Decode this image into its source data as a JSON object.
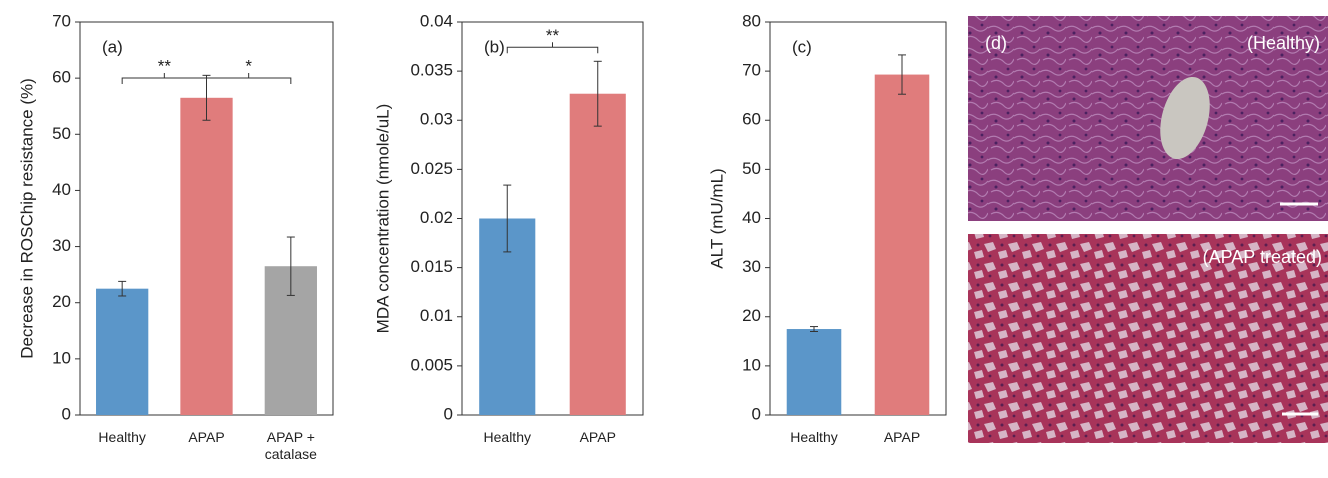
{
  "chart_data": [
    {
      "type": "bar",
      "panel_label": "(a)",
      "y_label": "Decrease in ROSChip resistance (%)",
      "categories": [
        "Healthy",
        "APAP",
        "APAP + catalase"
      ],
      "values": [
        22.5,
        56.5,
        26.5
      ],
      "errors": [
        1.3,
        4,
        5.2
      ],
      "colors": [
        "#5b96c9",
        "#e07c7c",
        "#a5a5a5"
      ],
      "annotations": [
        "**",
        "*"
      ],
      "ylim": [
        0,
        70
      ],
      "yticks": [
        0,
        10,
        20,
        30,
        40,
        50,
        60,
        70
      ]
    },
    {
      "type": "bar",
      "panel_label": "(b)",
      "y_label": "MDA concentration (nmole/uL)",
      "categories": [
        "Healthy",
        "APAP"
      ],
      "values": [
        0.02,
        0.0327
      ],
      "errors": [
        0.0034,
        0.0033
      ],
      "colors": [
        "#5b96c9",
        "#e07c7c"
      ],
      "annotations": [
        "**"
      ],
      "ylim": [
        0,
        0.04
      ],
      "yticks": [
        0,
        0.005,
        0.01,
        0.015,
        0.02,
        0.025,
        0.03,
        0.035,
        0.04
      ]
    },
    {
      "type": "bar",
      "panel_label": "(c)",
      "y_label": "ALT (mU/mL)",
      "categories": [
        "Healthy",
        "APAP"
      ],
      "values": [
        17.5,
        69.3
      ],
      "errors": [
        0.5,
        4
      ],
      "colors": [
        "#5b96c9",
        "#e07c7c"
      ],
      "annotations": [],
      "ylim": [
        0,
        80
      ],
      "yticks": [
        0,
        10,
        20,
        30,
        40,
        50,
        60,
        70,
        80
      ]
    }
  ],
  "images": {
    "panel_label": "(d)",
    "labels": [
      "(Healthy)",
      "(APAP treated)"
    ]
  }
}
